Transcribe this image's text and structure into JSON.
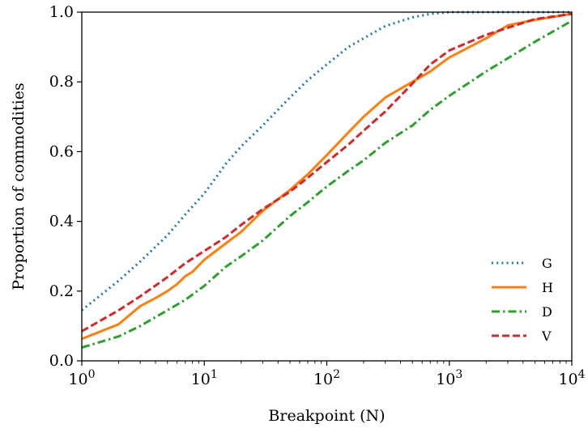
{
  "chart_data": {
    "type": "line",
    "title": "",
    "xlabel": "Breakpoint (N)",
    "ylabel": "Proportion of commodities",
    "xscale": "log",
    "xlim": [
      1,
      10000
    ],
    "ylim": [
      0,
      1.0
    ],
    "grid": false,
    "legend_position": "bottom-right",
    "x_ticks": [
      {
        "value": 1,
        "base": "10",
        "exp": "0"
      },
      {
        "value": 10,
        "base": "10",
        "exp": "1"
      },
      {
        "value": 100,
        "base": "10",
        "exp": "2"
      },
      {
        "value": 1000,
        "base": "10",
        "exp": "3"
      },
      {
        "value": 10000,
        "base": "10",
        "exp": "4"
      }
    ],
    "y_ticks": [
      {
        "value": 0.0,
        "label": "0.0"
      },
      {
        "value": 0.2,
        "label": "0.2"
      },
      {
        "value": 0.4,
        "label": "0.4"
      },
      {
        "value": 0.6,
        "label": "0.6"
      },
      {
        "value": 0.8,
        "label": "0.8"
      },
      {
        "value": 1.0,
        "label": "1.0"
      }
    ],
    "series": [
      {
        "name": "G",
        "color": "#1f77b4",
        "style": "dotted",
        "x": [
          1,
          2,
          3,
          5,
          7,
          10,
          15,
          20,
          30,
          50,
          70,
          100,
          150,
          200,
          300,
          500,
          700,
          1000,
          2000,
          5000,
          10000
        ],
        "y": [
          0.145,
          0.23,
          0.285,
          0.36,
          0.42,
          0.48,
          0.565,
          0.615,
          0.675,
          0.755,
          0.805,
          0.85,
          0.9,
          0.925,
          0.96,
          0.985,
          0.995,
          1.0,
          1.0,
          1.0,
          1.0
        ]
      },
      {
        "name": "H",
        "color": "#ff7f0e",
        "style": "solid",
        "x": [
          1,
          2,
          3,
          4,
          5,
          6,
          7,
          8,
          10,
          15,
          20,
          30,
          50,
          70,
          100,
          150,
          200,
          300,
          500,
          700,
          1000,
          2000,
          3000,
          5000,
          10000
        ],
        "y": [
          0.063,
          0.105,
          0.157,
          0.18,
          0.2,
          0.22,
          0.243,
          0.255,
          0.29,
          0.337,
          0.37,
          0.43,
          0.49,
          0.535,
          0.59,
          0.655,
          0.7,
          0.755,
          0.8,
          0.83,
          0.87,
          0.925,
          0.962,
          0.978,
          0.995
        ]
      },
      {
        "name": "D",
        "color": "#2ca02c",
        "style": "dashdot",
        "x": [
          1,
          2,
          3,
          5,
          7,
          10,
          15,
          20,
          30,
          50,
          70,
          100,
          150,
          200,
          300,
          500,
          700,
          1000,
          2000,
          5000,
          10000
        ],
        "y": [
          0.038,
          0.07,
          0.1,
          0.145,
          0.175,
          0.215,
          0.27,
          0.3,
          0.345,
          0.415,
          0.455,
          0.5,
          0.545,
          0.575,
          0.625,
          0.675,
          0.72,
          0.76,
          0.83,
          0.915,
          0.975
        ]
      },
      {
        "name": "V",
        "color": "#d62728",
        "style": "dashed",
        "x": [
          1,
          2,
          3,
          5,
          7,
          10,
          15,
          20,
          30,
          50,
          70,
          100,
          150,
          200,
          300,
          500,
          700,
          1000,
          2000,
          5000,
          10000
        ],
        "y": [
          0.085,
          0.145,
          0.185,
          0.24,
          0.28,
          0.315,
          0.355,
          0.39,
          0.435,
          0.485,
          0.525,
          0.57,
          0.62,
          0.66,
          0.715,
          0.795,
          0.85,
          0.89,
          0.935,
          0.98,
          0.995
        ]
      }
    ]
  }
}
